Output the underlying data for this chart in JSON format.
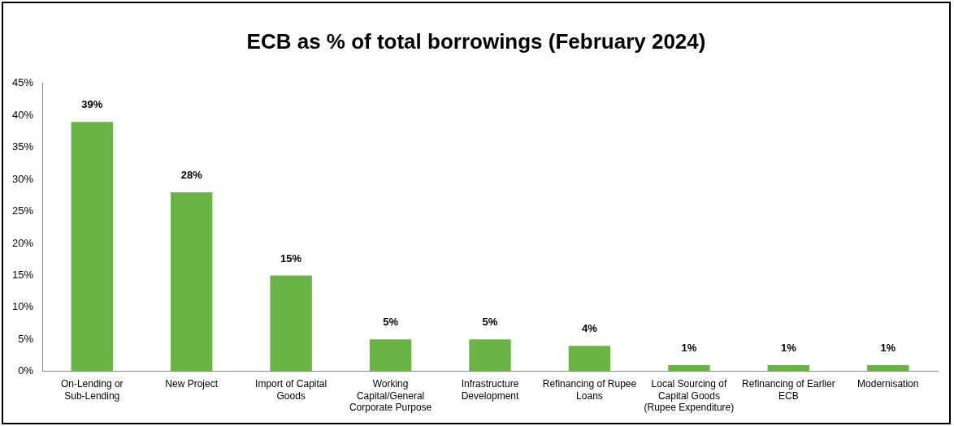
{
  "chart_data": {
    "type": "bar",
    "title": "ECB as % of total borrowings (February 2024)",
    "categories": [
      "On-Lending or Sub-Lending",
      "New Project",
      "Import of Capital Goods",
      "Working Capital/General Corporate Purpose",
      "Infrastructure Development",
      "Refinancing of Rupee Loans",
      "Local Sourcing of Capital Goods (Rupee Expenditure)",
      "Refinancing of Earlier ECB",
      "Modernisation"
    ],
    "values": [
      39,
      28,
      15,
      5,
      5,
      4,
      1,
      1,
      1
    ],
    "value_labels": [
      "39%",
      "28%",
      "15%",
      "5%",
      "5%",
      "4%",
      "1%",
      "1%",
      "1%"
    ],
    "color": "#6ab446",
    "ylim": [
      0,
      45
    ],
    "yticks": [
      {
        "value": 0,
        "label": "0%"
      },
      {
        "value": 5,
        "label": "5%"
      },
      {
        "value": 10,
        "label": "10%"
      },
      {
        "value": 15,
        "label": "15%"
      },
      {
        "value": 20,
        "label": "20%"
      },
      {
        "value": 25,
        "label": "25%"
      },
      {
        "value": 30,
        "label": "30%"
      },
      {
        "value": 35,
        "label": "35%"
      },
      {
        "value": 40,
        "label": "40%"
      },
      {
        "value": 45,
        "label": "45%"
      }
    ],
    "grid": false,
    "legend": false
  }
}
